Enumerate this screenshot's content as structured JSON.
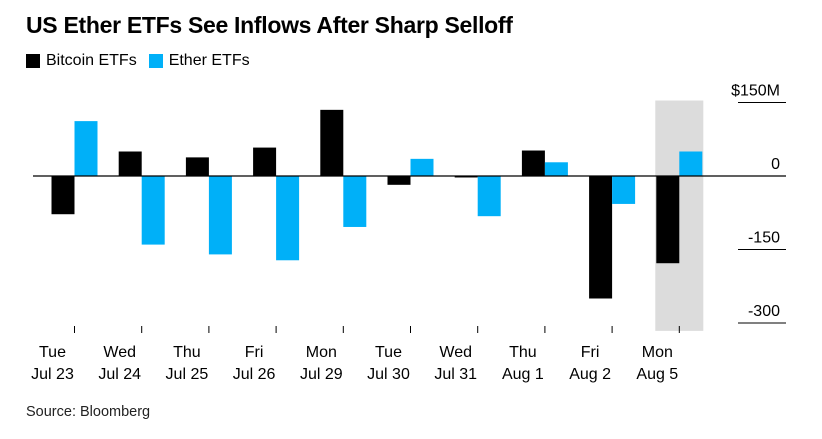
{
  "title": "US Ether ETFs See Inflows After Sharp Selloff",
  "source": "Source: Bloomberg",
  "colors": {
    "bitcoin": "#000000",
    "ether": "#00b0f8",
    "highlight": "#dcdcdc",
    "axis": "#000000",
    "grid": "#000000"
  },
  "chart_data": {
    "type": "bar",
    "title": "US Ether ETFs See Inflows After Sharp Selloff",
    "categories": [
      [
        "Tue",
        "Jul 23"
      ],
      [
        "Wed",
        "Jul 24"
      ],
      [
        "Thu",
        "Jul 25"
      ],
      [
        "Fri",
        "Jul 26"
      ],
      [
        "Mon",
        "Jul 29"
      ],
      [
        "Tue",
        "Jul 30"
      ],
      [
        "Wed",
        "Jul 31"
      ],
      [
        "Thu",
        "Aug 1"
      ],
      [
        "Fri",
        "Aug 2"
      ],
      [
        "Mon",
        "Aug 5"
      ]
    ],
    "series": [
      {
        "name": "Bitcoin ETFs",
        "color": "#000000",
        "values": [
          -78,
          50,
          38,
          58,
          135,
          -18,
          -3,
          52,
          -250,
          -178
        ]
      },
      {
        "name": "Ether ETFs",
        "color": "#00b0f8",
        "values": [
          112,
          -140,
          -160,
          -172,
          -104,
          35,
          -82,
          28,
          -57,
          50
        ]
      }
    ],
    "highlight_category": 9,
    "yticks": [
      {
        "value": 150,
        "label": "$150M"
      },
      {
        "value": 0,
        "label": "0"
      },
      {
        "value": -150,
        "label": "-150"
      },
      {
        "value": -300,
        "label": "-300"
      }
    ],
    "ylim": [
      -310,
      160
    ],
    "xlabel": "",
    "ylabel": "",
    "legend_position": "top-left"
  }
}
